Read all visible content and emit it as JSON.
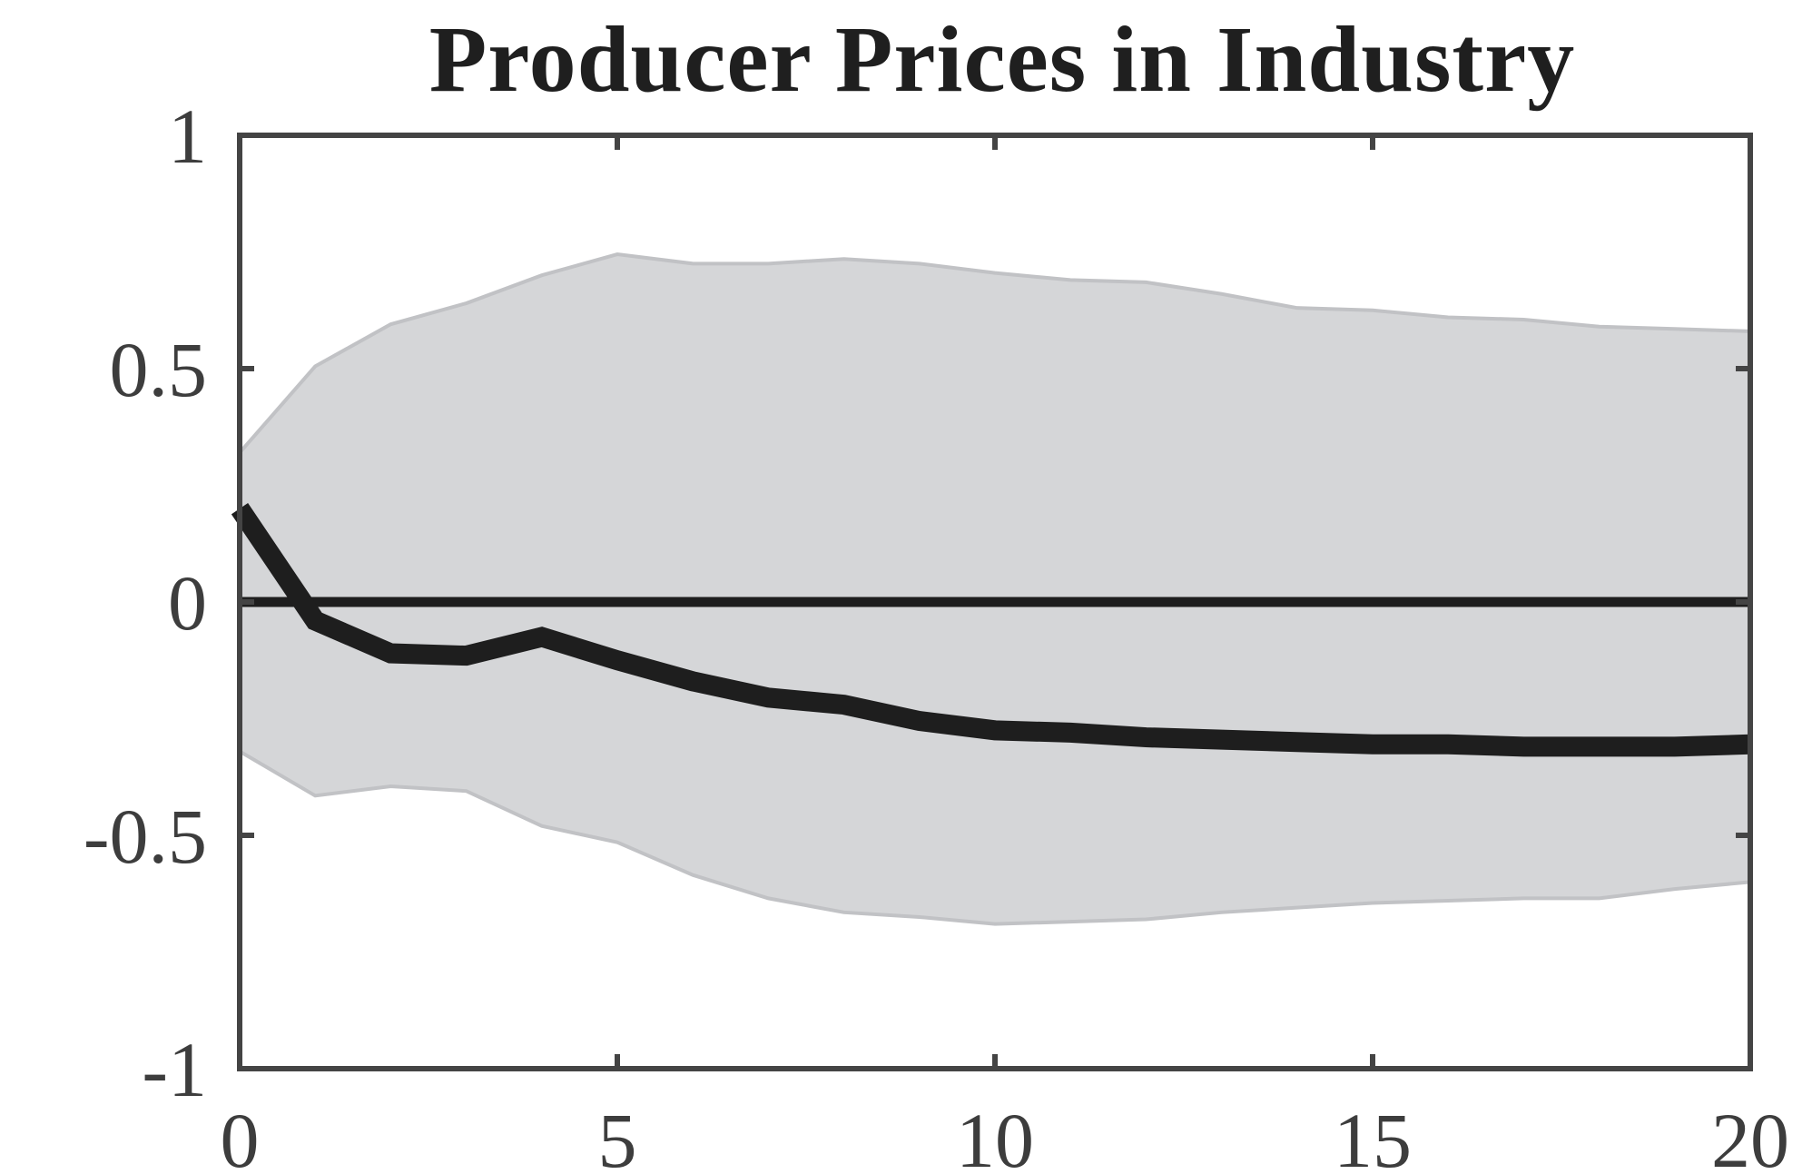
{
  "chart_data": {
    "type": "line",
    "title": "Producer Prices in Industry",
    "xlabel": "",
    "ylabel": "",
    "xlim": [
      0,
      20
    ],
    "ylim": [
      -1,
      1
    ],
    "xticks": [
      0,
      5,
      10,
      15,
      20
    ],
    "yticks": [
      1,
      0.5,
      0,
      -0.5,
      -1
    ],
    "xtick_labels": [
      "0",
      "5",
      "10",
      "15",
      "20"
    ],
    "ytick_labels": [
      "1",
      "0.5",
      "0",
      "-0.5",
      "-1"
    ],
    "grid": false,
    "legend": "none",
    "x": [
      0,
      1,
      2,
      3,
      4,
      5,
      6,
      7,
      8,
      9,
      10,
      11,
      12,
      13,
      14,
      15,
      16,
      17,
      18,
      19,
      20
    ],
    "series": [
      {
        "role": "response",
        "values": [
          0.2,
          -0.04,
          -0.11,
          -0.115,
          -0.075,
          -0.125,
          -0.17,
          -0.205,
          -0.22,
          -0.255,
          -0.275,
          -0.28,
          -0.29,
          -0.295,
          -0.3,
          -0.305,
          -0.305,
          -0.31,
          -0.31,
          -0.31,
          -0.305
        ]
      },
      {
        "role": "upper_band",
        "values": [
          0.32,
          0.505,
          0.595,
          0.64,
          0.7,
          0.745,
          0.725,
          0.725,
          0.735,
          0.725,
          0.705,
          0.69,
          0.685,
          0.66,
          0.63,
          0.625,
          0.61,
          0.605,
          0.59,
          0.585,
          0.58
        ]
      },
      {
        "role": "lower_band",
        "values": [
          -0.32,
          -0.415,
          -0.395,
          -0.405,
          -0.48,
          -0.515,
          -0.585,
          -0.635,
          -0.665,
          -0.675,
          -0.69,
          -0.685,
          -0.68,
          -0.665,
          -0.655,
          -0.645,
          -0.64,
          -0.635,
          -0.635,
          -0.615,
          -0.6
        ]
      }
    ],
    "colors": {
      "response": "#1e1e1e",
      "band_fill": "#d5d6d8",
      "band_edge": "#c1c2c5",
      "zero_line": "#1e1e1e",
      "axes": "#444444"
    }
  }
}
